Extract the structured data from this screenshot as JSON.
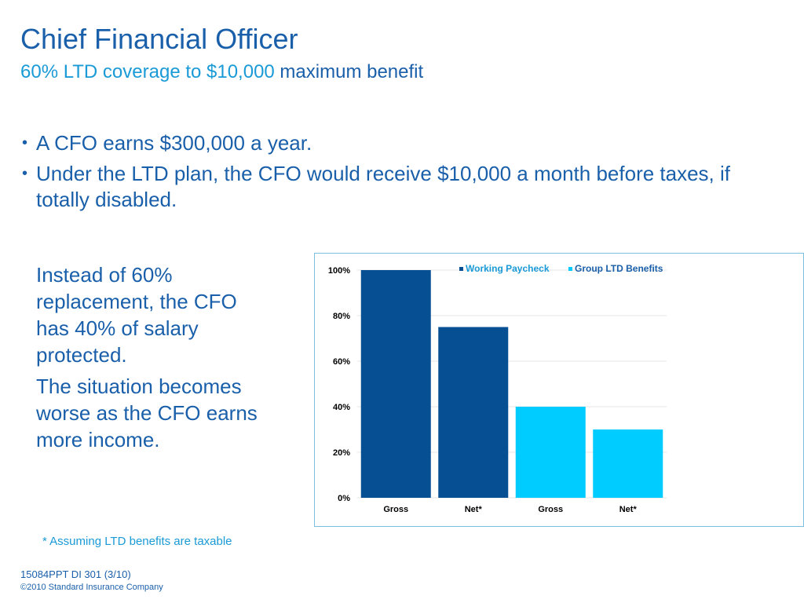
{
  "title": "Chief Financial Officer",
  "subtitle": {
    "part1": "60% LTD coverage to $10,000",
    "part2": " maximum benefit"
  },
  "bullets": [
    "A CFO earns $300,000 a year.",
    "Under the LTD plan, the CFO would receive $10,000 a month before taxes, if totally disabled."
  ],
  "side_text": [
    "Instead of 60% replacement, the CFO has 40% of salary protected.",
    "The situation becomes worse as the CFO earns more income."
  ],
  "footnote": "* Assuming LTD benefits are taxable",
  "footer": {
    "code": "15084PPT DI 301 (3/10)",
    "copyright": "©2010 Standard Insurance Company"
  },
  "colors": {
    "working_paycheck": "#064f93",
    "group_ltd": "#00ccff",
    "title_blue": "#1a5faa",
    "accent_blue": "#1a9ad6"
  },
  "chart_data": {
    "type": "bar",
    "categories": [
      "Gross",
      "Net*",
      "Gross",
      "Net*"
    ],
    "values": [
      100,
      75,
      40,
      30
    ],
    "series_of_category": [
      0,
      0,
      1,
      1
    ],
    "series": [
      {
        "name": "Working Paycheck",
        "color": "#064f93"
      },
      {
        "name": "Group LTD Benefits",
        "color": "#00ccff"
      }
    ],
    "yticks": [
      "0%",
      "20%",
      "40%",
      "60%",
      "80%",
      "100%"
    ],
    "ylim": [
      0,
      100
    ],
    "grid": true,
    "legend": "top-right"
  }
}
